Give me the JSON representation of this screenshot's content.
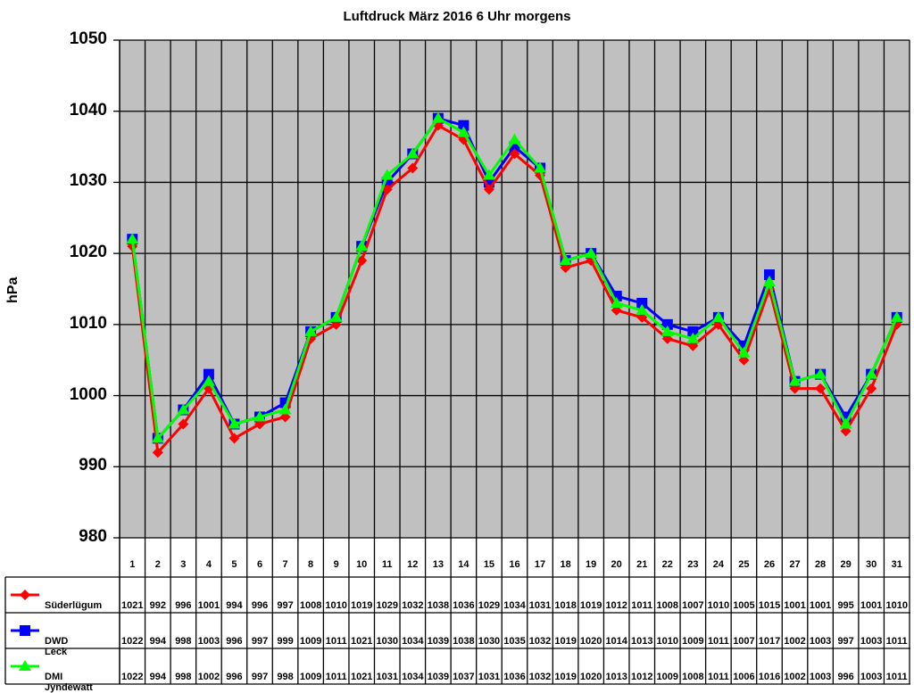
{
  "title": "Luftdruck März 2016 6 Uhr morgens",
  "yaxis": {
    "label": "hPa",
    "ticks": [
      "1050",
      "1040",
      "1030",
      "1020",
      "1010",
      "1000",
      "990",
      "980"
    ]
  },
  "colors": {
    "plot_bg": "#c0c0c0",
    "grid": "#000000",
    "Süderlügum": "#ff0000",
    "DWD Leck": "#0000ff",
    "DMI Jyndewatt": "#00ff00"
  },
  "chart_data": {
    "type": "line",
    "title": "Luftdruck März 2016 6 Uhr morgens",
    "xlabel": "",
    "ylabel": "hPa",
    "ylim": [
      980,
      1050
    ],
    "yticks": [
      980,
      990,
      1000,
      1010,
      1020,
      1030,
      1040,
      1050
    ],
    "grid": true,
    "legend_position": "data-table-left",
    "categories": [
      "1",
      "2",
      "3",
      "4",
      "5",
      "6",
      "7",
      "8",
      "9",
      "10",
      "11",
      "12",
      "13",
      "14",
      "15",
      "16",
      "17",
      "18",
      "19",
      "20",
      "21",
      "22",
      "23",
      "24",
      "25",
      "26",
      "27",
      "28",
      "29",
      "30",
      "31"
    ],
    "series": [
      {
        "name": "Süderlügum",
        "color": "#ff0000",
        "marker": "diamond",
        "values": [
          1021,
          992,
          996,
          1001,
          994,
          996,
          997,
          1008,
          1010,
          1019,
          1029,
          1032,
          1038,
          1036,
          1029,
          1034,
          1031,
          1018,
          1019,
          1012,
          1011,
          1008,
          1007,
          1010,
          1005,
          1015,
          1001,
          1001,
          995,
          1001,
          1010
        ]
      },
      {
        "name": "DWD Leck",
        "color": "#0000ff",
        "marker": "square",
        "values": [
          1022,
          994,
          998,
          1003,
          996,
          997,
          999,
          1009,
          1011,
          1021,
          1030,
          1034,
          1039,
          1038,
          1030,
          1035,
          1032,
          1019,
          1020,
          1014,
          1013,
          1010,
          1009,
          1011,
          1007,
          1017,
          1002,
          1003,
          997,
          1003,
          1011
        ]
      },
      {
        "name": "DMI Jyndewatt",
        "color": "#00ff00",
        "marker": "triangle",
        "values": [
          1022,
          994,
          998,
          1002,
          996,
          997,
          998,
          1009,
          1011,
          1021,
          1031,
          1034,
          1039,
          1037,
          1031,
          1036,
          1032,
          1019,
          1020,
          1013,
          1012,
          1009,
          1008,
          1011,
          1006,
          1016,
          1002,
          1003,
          996,
          1003,
          1011
        ]
      }
    ]
  }
}
